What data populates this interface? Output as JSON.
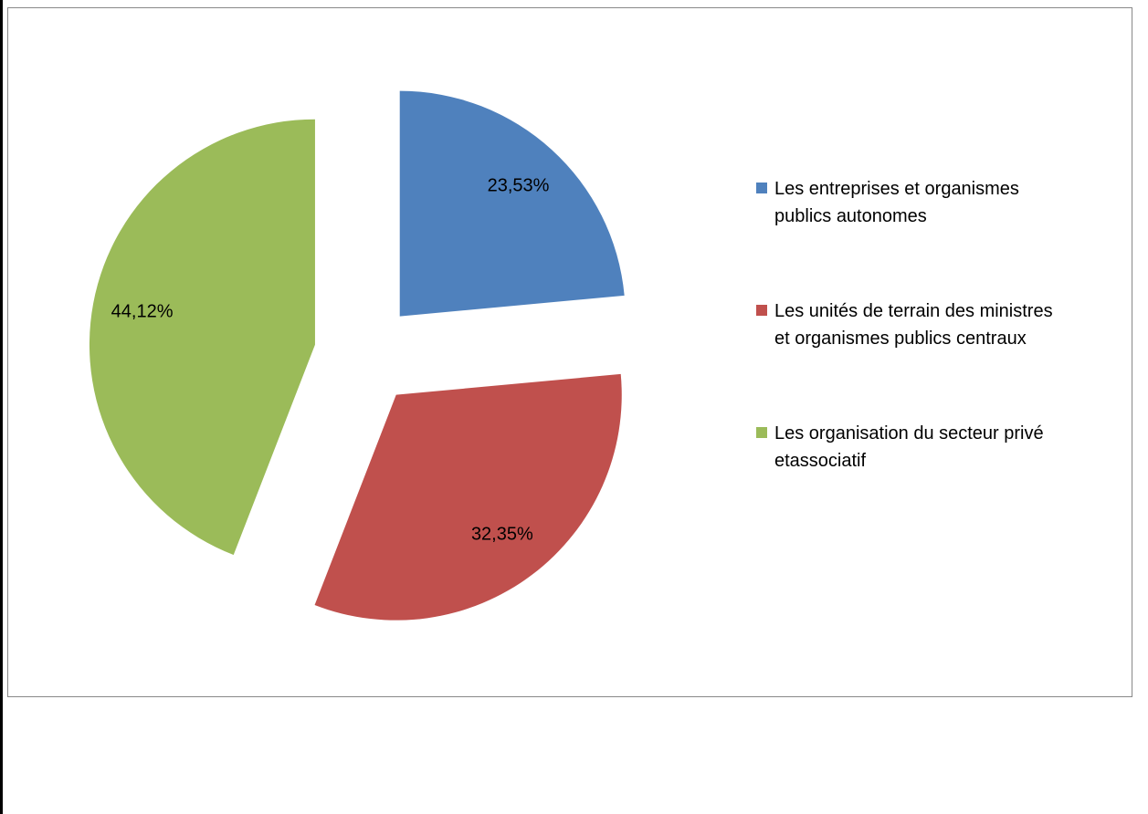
{
  "chart_data": {
    "type": "pie",
    "categories": [
      "Les entreprises et organismes publics autonomes",
      "Les unités de terrain des ministres et organismes publics centraux",
      "Les organisation du secteur privé etassociatif"
    ],
    "values": [
      23.53,
      32.35,
      44.12
    ],
    "value_labels": [
      "23,53%",
      "32,35%",
      "44,12%"
    ],
    "colors": [
      "#4f81bd",
      "#c0504d",
      "#9bbb59"
    ],
    "exploded": true,
    "legend": "right"
  }
}
